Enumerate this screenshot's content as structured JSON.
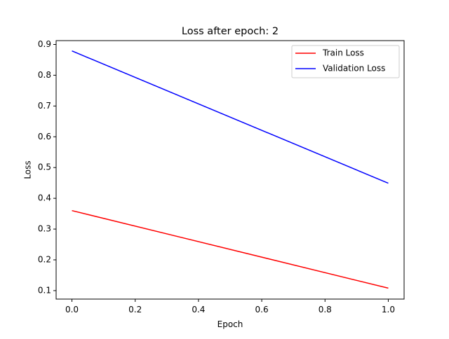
{
  "chart_data": {
    "type": "line",
    "title": "Loss after epoch: 2",
    "xlabel": "Epoch",
    "ylabel": "Loss",
    "xlim": [
      -0.05,
      1.05
    ],
    "ylim": [
      0.0725,
      0.9125
    ],
    "xticks": [
      0.0,
      0.2,
      0.4,
      0.6,
      0.8,
      1.0
    ],
    "xtick_labels": [
      "0.0",
      "0.2",
      "0.4",
      "0.6",
      "0.8",
      "1.0"
    ],
    "yticks": [
      0.1,
      0.2,
      0.3,
      0.4,
      0.5,
      0.6,
      0.7,
      0.8,
      0.9
    ],
    "ytick_labels": [
      "0.1",
      "0.2",
      "0.3",
      "0.4",
      "0.5",
      "0.6",
      "0.7",
      "0.8",
      "0.9"
    ],
    "grid": false,
    "legend_position": "upper right",
    "series": [
      {
        "name": "Train Loss",
        "color": "#ff0000",
        "x": [
          0.0,
          1.0
        ],
        "y": [
          0.36,
          0.108
        ]
      },
      {
        "name": "Validation Loss",
        "color": "#0000ff",
        "x": [
          0.0,
          1.0
        ],
        "y": [
          0.879,
          0.449
        ]
      }
    ]
  }
}
